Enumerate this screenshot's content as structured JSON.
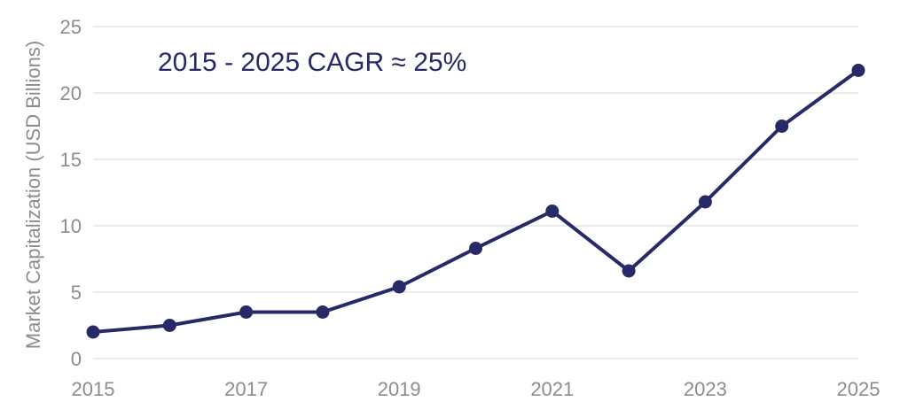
{
  "chart_data": {
    "type": "line",
    "title": "",
    "annotation": "2015 - 2025 CAGR ≈ 25%",
    "xlabel": "",
    "ylabel": "Market Capitalization (USD Billions)",
    "ylim": [
      0,
      25
    ],
    "yticks": [
      "0",
      "5",
      "10",
      "15",
      "20",
      "25"
    ],
    "xlim": [
      2015,
      2025
    ],
    "xticks": [
      "2015",
      "2017",
      "2019",
      "2021",
      "2023",
      "2025"
    ],
    "grid": true,
    "legend": "none",
    "series_color": "#262a66",
    "series": [
      {
        "name": "Market Capitalization",
        "x": [
          2015,
          2016,
          2017,
          2018,
          2019,
          2020,
          2021,
          2022,
          2023,
          2024,
          2025
        ],
        "values": [
          2.0,
          2.5,
          3.5,
          3.5,
          5.4,
          8.3,
          11.1,
          6.6,
          11.8,
          17.5,
          21.7
        ]
      }
    ]
  }
}
